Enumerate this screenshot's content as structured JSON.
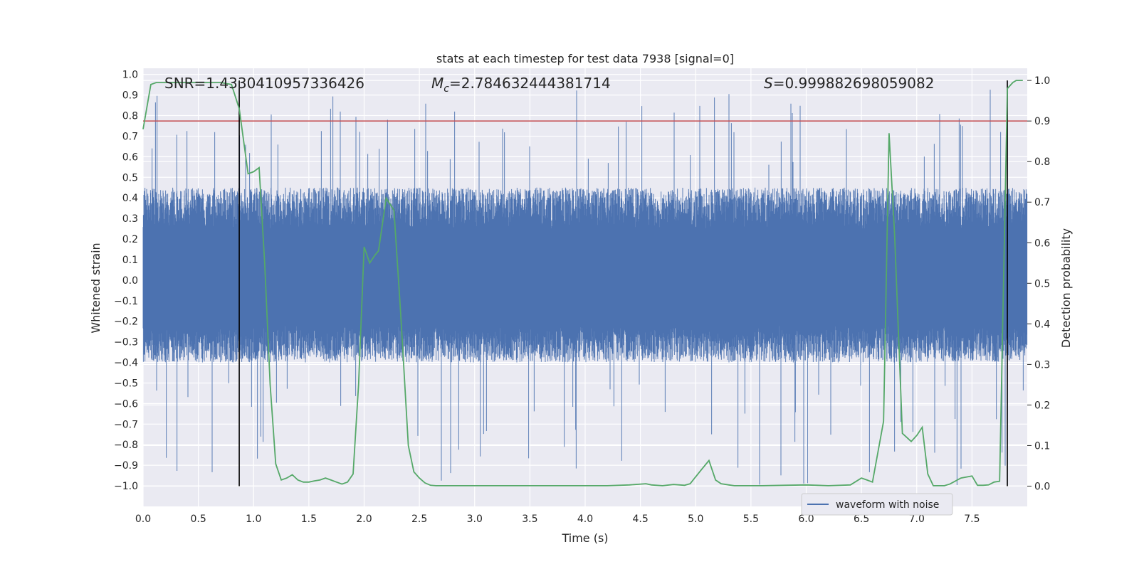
{
  "chart_data": {
    "type": "line",
    "title": "stats at each timestep for test data 7938 [signal=0]",
    "xlabel": "Time (s)",
    "ylabel": "Whitened strain",
    "ylabel_right": "Detection probability",
    "xlim": [
      0.0,
      8.0
    ],
    "ylim": [
      -1.1,
      1.03
    ],
    "ylim_right": [
      -0.05,
      1.03
    ],
    "x_ticks": [
      "0.0",
      "0.5",
      "1.0",
      "1.5",
      "2.0",
      "2.5",
      "3.0",
      "3.5",
      "4.0",
      "4.5",
      "5.0",
      "5.5",
      "6.0",
      "6.5",
      "7.0",
      "7.5"
    ],
    "y_ticks": [
      "1.0",
      "0.9",
      "0.8",
      "0.7",
      "0.6",
      "0.5",
      "0.4",
      "0.3",
      "0.2",
      "0.1",
      "0.0",
      "−0.1",
      "−0.2",
      "−0.3",
      "−0.4",
      "−0.5",
      "−0.6",
      "−0.7",
      "−0.8",
      "−0.9",
      "−1.0"
    ],
    "y_right_ticks": [
      "1.0",
      "0.9",
      "0.8",
      "0.7",
      "0.6",
      "0.5",
      "0.4",
      "0.3",
      "0.2",
      "0.1",
      "0.0"
    ],
    "annotations": {
      "snr": "SNR=1.4330410957336426",
      "mc_symbol": "M",
      "mc_sub": "c",
      "mc_value": "=2.784632444381714",
      "s_symbol": "S",
      "s_value": "=0.999882698059082"
    },
    "threshold": {
      "y_right": 0.9,
      "color": "#c44e52"
    },
    "vertical_markers": [
      0.87,
      7.82
    ],
    "series": [
      {
        "name": "waveform with noise",
        "axis": "left",
        "color": "#4c72b0",
        "description_envelope": {
          "core": [
            -0.4,
            0.45
          ],
          "peaks_max": 0.93,
          "peaks_min": -1.0
        }
      },
      {
        "axis": "right",
        "color": "#55a868",
        "x": [
          0.0,
          0.07,
          0.12,
          0.2,
          0.3,
          0.4,
          0.5,
          0.6,
          0.7,
          0.8,
          0.87,
          0.95,
          1.0,
          1.05,
          1.1,
          1.15,
          1.2,
          1.25,
          1.3,
          1.35,
          1.4,
          1.45,
          1.5,
          1.55,
          1.6,
          1.65,
          1.7,
          1.75,
          1.8,
          1.85,
          1.9,
          1.95,
          2.0,
          2.05,
          2.1,
          2.13,
          2.2,
          2.27,
          2.33,
          2.4,
          2.45,
          2.5,
          2.55,
          2.6,
          2.65,
          2.7,
          2.8,
          2.9,
          3.0,
          3.2,
          3.4,
          3.6,
          3.8,
          4.0,
          4.2,
          4.4,
          4.55,
          4.6,
          4.7,
          4.8,
          4.9,
          4.95,
          5.05,
          5.12,
          5.18,
          5.23,
          5.3,
          5.35,
          5.45,
          5.6,
          5.8,
          6.0,
          6.1,
          6.2,
          6.4,
          6.5,
          6.55,
          6.6,
          6.7,
          6.75,
          6.8,
          6.87,
          6.95,
          7.0,
          7.05,
          7.1,
          7.15,
          7.2,
          7.25,
          7.3,
          7.4,
          7.5,
          7.55,
          7.6,
          7.65,
          7.7,
          7.75,
          7.82,
          7.87,
          7.9,
          7.96
        ],
        "y": [
          0.88,
          0.99,
          0.995,
          0.995,
          0.995,
          0.995,
          0.995,
          0.995,
          0.995,
          0.99,
          0.93,
          0.77,
          0.775,
          0.785,
          0.55,
          0.25,
          0.055,
          0.015,
          0.02,
          0.028,
          0.015,
          0.01,
          0.01,
          0.013,
          0.015,
          0.02,
          0.015,
          0.01,
          0.005,
          0.01,
          0.03,
          0.25,
          0.59,
          0.55,
          0.57,
          0.58,
          0.71,
          0.68,
          0.43,
          0.1,
          0.035,
          0.02,
          0.008,
          0.002,
          0.001,
          0.001,
          0.001,
          0.001,
          0.001,
          0.001,
          0.001,
          0.001,
          0.001,
          0.001,
          0.001,
          0.003,
          0.006,
          0.003,
          0.001,
          0.004,
          0.002,
          0.006,
          0.04,
          0.063,
          0.015,
          0.006,
          0.003,
          0.001,
          0.001,
          0.001,
          0.002,
          0.003,
          0.002,
          0.001,
          0.003,
          0.02,
          0.015,
          0.01,
          0.16,
          0.87,
          0.62,
          0.13,
          0.11,
          0.125,
          0.145,
          0.03,
          0.001,
          0.001,
          0.001,
          0.005,
          0.02,
          0.025,
          0.002,
          0.002,
          0.003,
          0.01,
          0.012,
          0.98,
          0.995,
          1.0,
          1.0
        ]
      }
    ],
    "legend": {
      "position": "lower-right"
    },
    "grid": true
  }
}
